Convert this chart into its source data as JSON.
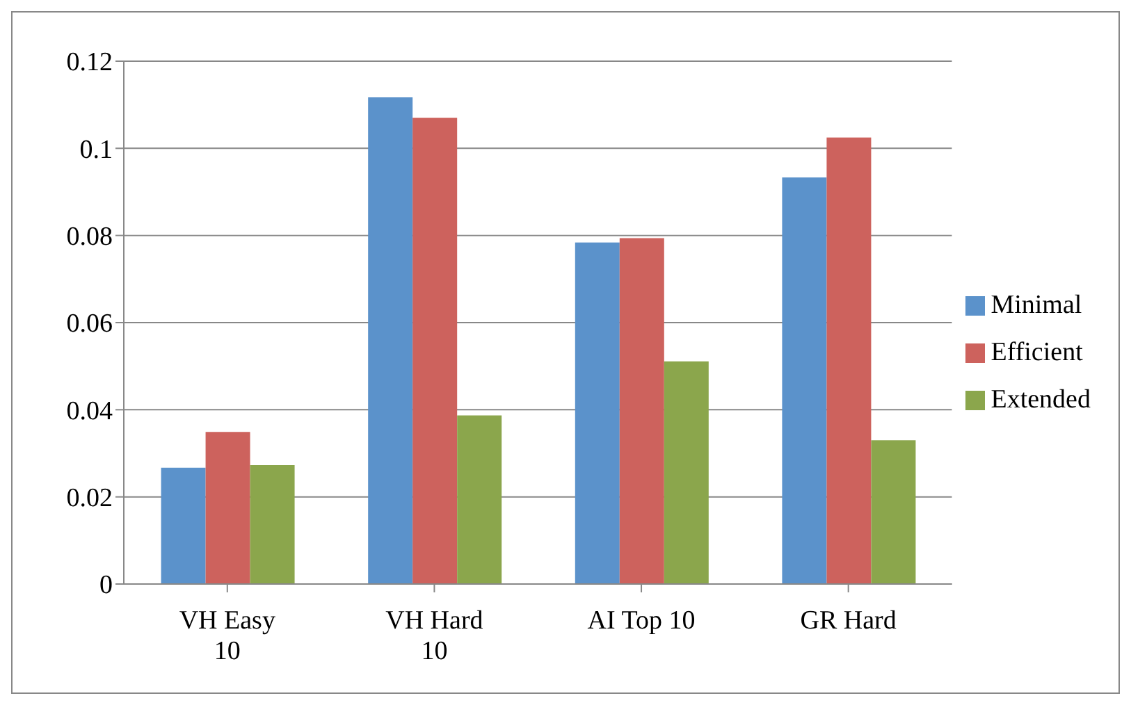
{
  "chart_data": {
    "type": "bar",
    "categories": [
      "VH Easy 10",
      "VH Hard 10",
      "AI Top 10",
      "GR Hard"
    ],
    "series": [
      {
        "name": "Minimal",
        "color": "#5b92cb",
        "values": [
          0.0267,
          0.1117,
          0.0784,
          0.0933
        ]
      },
      {
        "name": "Efficient",
        "color": "#cd625d",
        "values": [
          0.0349,
          0.107,
          0.0794,
          0.1025
        ]
      },
      {
        "name": "Extended",
        "color": "#8ba64c",
        "values": [
          0.0273,
          0.0387,
          0.0511,
          0.033
        ]
      }
    ],
    "ylim": [
      0,
      0.12
    ],
    "yticks": [
      0,
      0.02,
      0.04,
      0.06,
      0.08,
      0.1,
      0.12
    ],
    "grid": "y",
    "legend": "right"
  }
}
